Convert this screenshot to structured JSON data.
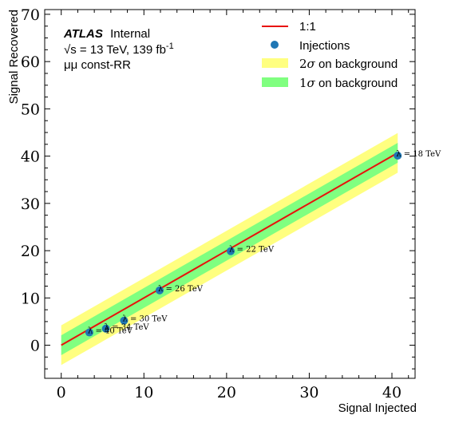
{
  "chart_data": {
    "type": "line",
    "xlabel": "Signal Injected",
    "ylabel": "Signal Recovered",
    "xlim": [
      -2,
      42.8
    ],
    "ylim": [
      -7,
      71
    ],
    "xticks": [
      0,
      10,
      20,
      30,
      40
    ],
    "yticks": [
      0,
      10,
      20,
      30,
      40,
      50,
      60,
      70
    ],
    "grid": false,
    "legend_position": "top-right",
    "annotation": {
      "experiment": "ATLAS",
      "status": "Internal",
      "energy_prefix": "√s = 13 TeV, 139 fb",
      "energy_superscript": "-1",
      "channel": "μμ const-RR"
    },
    "legend": [
      {
        "label": "1:1",
        "kind": "line",
        "color": "#e8120b"
      },
      {
        "label": "Injections",
        "kind": "marker",
        "color": "#1f77b4"
      },
      {
        "label_prefix": "2",
        "label_symbol": "σ",
        "label_suffix": " on background",
        "kind": "patch",
        "color": "#ffff80"
      },
      {
        "label_prefix": "1",
        "label_symbol": "σ",
        "label_suffix": " on background",
        "kind": "patch",
        "color": "#80ff80"
      }
    ],
    "band_x": [
      0,
      40.7
    ],
    "band_2sigma": {
      "lower": [
        -4.2,
        36.5
      ],
      "upper": [
        4.2,
        44.9
      ]
    },
    "band_1sigma": {
      "lower": [
        -2.1,
        38.6
      ],
      "upper": [
        2.1,
        42.8
      ]
    },
    "line_1to1": {
      "x": [
        0,
        40.7
      ],
      "y": [
        0,
        40.7
      ]
    },
    "injections": [
      {
        "x": 3.4,
        "y": 2.7,
        "label": "λ = 40 TeV"
      },
      {
        "x": 5.4,
        "y": 3.5,
        "label": "λ = 34 TeV"
      },
      {
        "x": 7.6,
        "y": 5.2,
        "label": "λ = 30 TeV"
      },
      {
        "x": 11.9,
        "y": 11.6,
        "label": "λ = 26 TeV"
      },
      {
        "x": 20.5,
        "y": 19.9,
        "label": "λ = 22 TeV"
      },
      {
        "x": 40.7,
        "y": 40.1,
        "label": "λ = 18 TeV"
      }
    ],
    "colors": {
      "points": "#1f77b4",
      "line": "#e8120b",
      "band_1sigma": "#80ff80",
      "band_2sigma": "#ffff80"
    }
  }
}
